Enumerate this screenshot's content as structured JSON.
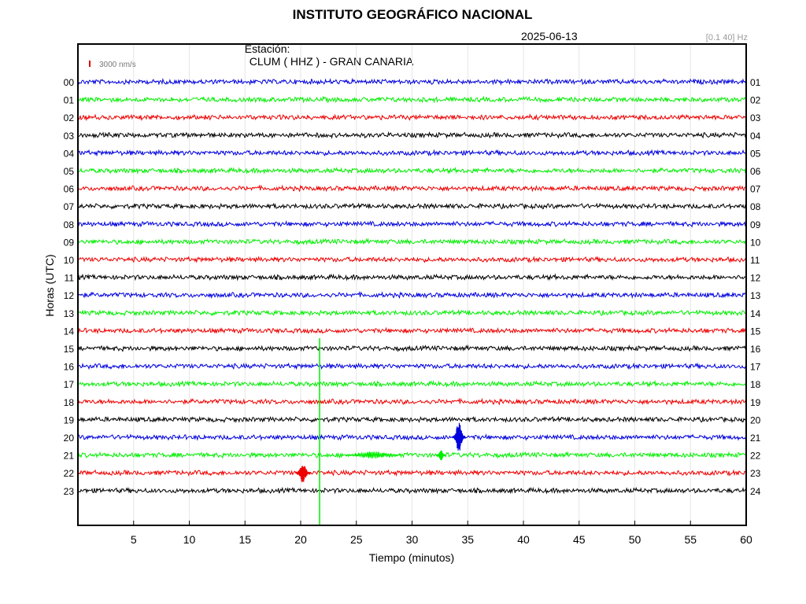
{
  "header": {
    "title": "INSTITUTO GEOGRÁFICO NACIONAL",
    "station_label": "Estación:",
    "station": "CLUM ( HHZ ) - GRAN CANARIA",
    "date": "2025-06-13",
    "filter": "[0.1 40] Hz"
  },
  "chart_data": {
    "type": "line",
    "title": "INSTITUTO GEOGRÁFICO NACIONAL",
    "xlabel": "Tiempo (minutos)",
    "ylabel": "Horas (UTC)",
    "xlim": [
      0,
      60
    ],
    "x_ticks": [
      5,
      10,
      15,
      20,
      25,
      30,
      35,
      40,
      45,
      50,
      55,
      60
    ],
    "grid": true,
    "scale_label": "3000 nm/s",
    "scale_color": "#e00000",
    "left_labels": [
      "00",
      "01",
      "02",
      "03",
      "04",
      "05",
      "06",
      "07",
      "08",
      "09",
      "10",
      "11",
      "12",
      "13",
      "14",
      "15",
      "16",
      "17",
      "18",
      "19",
      "20",
      "21",
      "22",
      "23"
    ],
    "right_labels": [
      "01",
      "02",
      "03",
      "04",
      "05",
      "06",
      "07",
      "08",
      "09",
      "10",
      "11",
      "12",
      "13",
      "14",
      "15",
      "16",
      "17",
      "18",
      "19",
      "20",
      "21",
      "22",
      "23",
      "24"
    ],
    "trace_colors": [
      "#0000dd",
      "#00ee00",
      "#ee0000",
      "#000000"
    ],
    "events": [
      {
        "hour": "15-21",
        "minute": 21.7,
        "type": "vertical spike",
        "color": "#00ee00"
      },
      {
        "hour": "20",
        "minute": 34.2,
        "type": "burst",
        "color": "#0000dd"
      },
      {
        "hour": "21",
        "minute": 32.6,
        "type": "burst",
        "color": "#00ee00"
      },
      {
        "hour": "22",
        "minute": 20.2,
        "type": "burst",
        "color": "#ee0000"
      }
    ]
  }
}
